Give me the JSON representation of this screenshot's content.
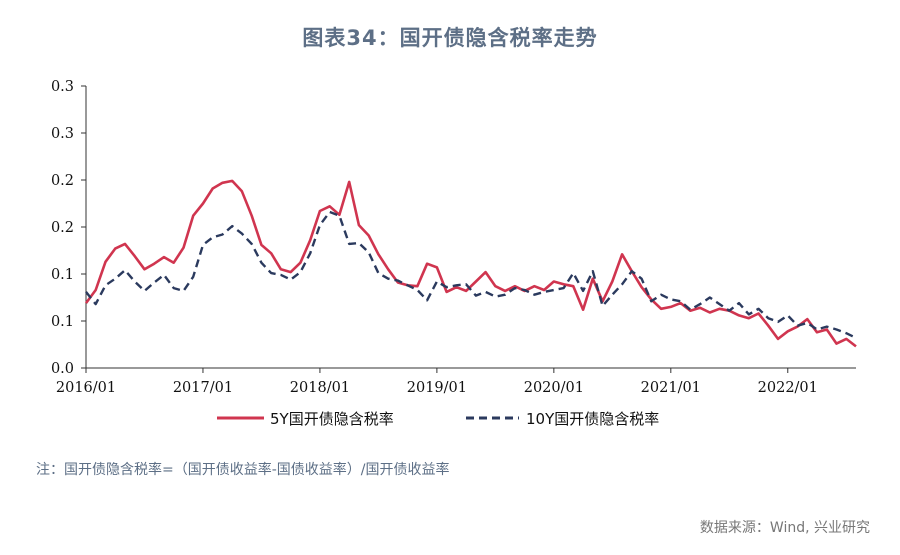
{
  "chart_data": {
    "type": "line",
    "title": "图表34：国开债隐含税率走势",
    "y_tick_labels": [
      "0.0",
      "0.1",
      "0.1",
      "0.2",
      "0.2",
      "0.3",
      "0.3"
    ],
    "ylim": [
      0,
      0.3
    ],
    "x_tick_labels": [
      "2016/01",
      "2017/01",
      "2018/01",
      "2019/01",
      "2020/01",
      "2021/01",
      "2022/01"
    ],
    "xlim": [
      "2016-01",
      "2022-08"
    ],
    "legend_position": "bottom",
    "series": [
      {
        "name": "5Y国开债隐含税率",
        "color": "#d0354f",
        "style": "solid",
        "points": [
          [
            "2016-01",
            0.069
          ],
          [
            "2016-02",
            0.083
          ],
          [
            "2016-03",
            0.113
          ],
          [
            "2016-04",
            0.127
          ],
          [
            "2016-05",
            0.132
          ],
          [
            "2016-06",
            0.119
          ],
          [
            "2016-07",
            0.105
          ],
          [
            "2016-08",
            0.111
          ],
          [
            "2016-09",
            0.118
          ],
          [
            "2016-10",
            0.112
          ],
          [
            "2016-11",
            0.128
          ],
          [
            "2016-12",
            0.162
          ],
          [
            "2017-01",
            0.175
          ],
          [
            "2017-02",
            0.191
          ],
          [
            "2017-03",
            0.197
          ],
          [
            "2017-04",
            0.199
          ],
          [
            "2017-05",
            0.188
          ],
          [
            "2017-06",
            0.162
          ],
          [
            "2017-07",
            0.131
          ],
          [
            "2017-08",
            0.122
          ],
          [
            "2017-09",
            0.105
          ],
          [
            "2017-10",
            0.102
          ],
          [
            "2017-11",
            0.112
          ],
          [
            "2017-12",
            0.136
          ],
          [
            "2018-01",
            0.167
          ],
          [
            "2018-02",
            0.172
          ],
          [
            "2018-03",
            0.163
          ],
          [
            "2018-04",
            0.198
          ],
          [
            "2018-05",
            0.152
          ],
          [
            "2018-06",
            0.141
          ],
          [
            "2018-07",
            0.121
          ],
          [
            "2018-08",
            0.105
          ],
          [
            "2018-09",
            0.091
          ],
          [
            "2018-10",
            0.088
          ],
          [
            "2018-11",
            0.087
          ],
          [
            "2018-12",
            0.111
          ],
          [
            "2019-01",
            0.107
          ],
          [
            "2019-02",
            0.081
          ],
          [
            "2019-03",
            0.086
          ],
          [
            "2019-04",
            0.082
          ],
          [
            "2019-05",
            0.092
          ],
          [
            "2019-06",
            0.102
          ],
          [
            "2019-07",
            0.087
          ],
          [
            "2019-08",
            0.082
          ],
          [
            "2019-09",
            0.087
          ],
          [
            "2019-10",
            0.082
          ],
          [
            "2019-11",
            0.087
          ],
          [
            "2019-12",
            0.083
          ],
          [
            "2020-01",
            0.092
          ],
          [
            "2020-02",
            0.089
          ],
          [
            "2020-03",
            0.087
          ],
          [
            "2020-04",
            0.062
          ],
          [
            "2020-05",
            0.095
          ],
          [
            "2020-06",
            0.071
          ],
          [
            "2020-07",
            0.092
          ],
          [
            "2020-08",
            0.121
          ],
          [
            "2020-09",
            0.103
          ],
          [
            "2020-10",
            0.086
          ],
          [
            "2020-11",
            0.073
          ],
          [
            "2020-12",
            0.063
          ],
          [
            "2021-01",
            0.065
          ],
          [
            "2021-02",
            0.069
          ],
          [
            "2021-03",
            0.061
          ],
          [
            "2021-04",
            0.064
          ],
          [
            "2021-05",
            0.059
          ],
          [
            "2021-06",
            0.063
          ],
          [
            "2021-07",
            0.061
          ],
          [
            "2021-08",
            0.056
          ],
          [
            "2021-09",
            0.053
          ],
          [
            "2021-10",
            0.058
          ],
          [
            "2021-11",
            0.045
          ],
          [
            "2021-12",
            0.031
          ],
          [
            "2022-01",
            0.039
          ],
          [
            "2022-02",
            0.044
          ],
          [
            "2022-03",
            0.052
          ],
          [
            "2022-04",
            0.038
          ],
          [
            "2022-05",
            0.041
          ],
          [
            "2022-06",
            0.026
          ],
          [
            "2022-07",
            0.031
          ],
          [
            "2022-08",
            0.023
          ]
        ]
      },
      {
        "name": "10Y国开债隐含税率",
        "color": "#2b3a5e",
        "style": "dashed",
        "points": [
          [
            "2016-01",
            0.081
          ],
          [
            "2016-02",
            0.068
          ],
          [
            "2016-03",
            0.088
          ],
          [
            "2016-04",
            0.095
          ],
          [
            "2016-05",
            0.104
          ],
          [
            "2016-06",
            0.092
          ],
          [
            "2016-07",
            0.082
          ],
          [
            "2016-08",
            0.091
          ],
          [
            "2016-09",
            0.099
          ],
          [
            "2016-10",
            0.085
          ],
          [
            "2016-11",
            0.082
          ],
          [
            "2016-12",
            0.097
          ],
          [
            "2017-01",
            0.131
          ],
          [
            "2017-02",
            0.139
          ],
          [
            "2017-03",
            0.142
          ],
          [
            "2017-04",
            0.151
          ],
          [
            "2017-05",
            0.143
          ],
          [
            "2017-06",
            0.132
          ],
          [
            "2017-07",
            0.112
          ],
          [
            "2017-08",
            0.101
          ],
          [
            "2017-09",
            0.099
          ],
          [
            "2017-10",
            0.094
          ],
          [
            "2017-11",
            0.102
          ],
          [
            "2017-12",
            0.122
          ],
          [
            "2018-01",
            0.152
          ],
          [
            "2018-02",
            0.166
          ],
          [
            "2018-03",
            0.162
          ],
          [
            "2018-04",
            0.132
          ],
          [
            "2018-05",
            0.133
          ],
          [
            "2018-06",
            0.123
          ],
          [
            "2018-07",
            0.101
          ],
          [
            "2018-08",
            0.095
          ],
          [
            "2018-09",
            0.093
          ],
          [
            "2018-10",
            0.088
          ],
          [
            "2018-11",
            0.083
          ],
          [
            "2018-12",
            0.072
          ],
          [
            "2019-01",
            0.092
          ],
          [
            "2019-02",
            0.086
          ],
          [
            "2019-03",
            0.088
          ],
          [
            "2019-04",
            0.089
          ],
          [
            "2019-05",
            0.077
          ],
          [
            "2019-06",
            0.081
          ],
          [
            "2019-07",
            0.076
          ],
          [
            "2019-08",
            0.078
          ],
          [
            "2019-09",
            0.085
          ],
          [
            "2019-10",
            0.083
          ],
          [
            "2019-11",
            0.078
          ],
          [
            "2019-12",
            0.081
          ],
          [
            "2020-01",
            0.083
          ],
          [
            "2020-02",
            0.085
          ],
          [
            "2020-03",
            0.101
          ],
          [
            "2020-04",
            0.082
          ],
          [
            "2020-05",
            0.103
          ],
          [
            "2020-06",
            0.066
          ],
          [
            "2020-07",
            0.078
          ],
          [
            "2020-08",
            0.089
          ],
          [
            "2020-09",
            0.103
          ],
          [
            "2020-10",
            0.095
          ],
          [
            "2020-11",
            0.071
          ],
          [
            "2020-12",
            0.078
          ],
          [
            "2021-01",
            0.073
          ],
          [
            "2021-02",
            0.071
          ],
          [
            "2021-03",
            0.062
          ],
          [
            "2021-04",
            0.068
          ],
          [
            "2021-05",
            0.075
          ],
          [
            "2021-06",
            0.068
          ],
          [
            "2021-07",
            0.061
          ],
          [
            "2021-08",
            0.069
          ],
          [
            "2021-09",
            0.057
          ],
          [
            "2021-10",
            0.063
          ],
          [
            "2021-11",
            0.053
          ],
          [
            "2021-12",
            0.049
          ],
          [
            "2022-01",
            0.056
          ],
          [
            "2022-02",
            0.045
          ],
          [
            "2022-03",
            0.048
          ],
          [
            "2022-04",
            0.041
          ],
          [
            "2022-05",
            0.044
          ],
          [
            "2022-06",
            0.041
          ],
          [
            "2022-07",
            0.037
          ],
          [
            "2022-08",
            0.032
          ]
        ]
      }
    ]
  },
  "note": "注：国开债隐含税率=（国开债收益率-国债收益率）/国开债收益率",
  "source": "数据来源：Wind, 兴业研究"
}
